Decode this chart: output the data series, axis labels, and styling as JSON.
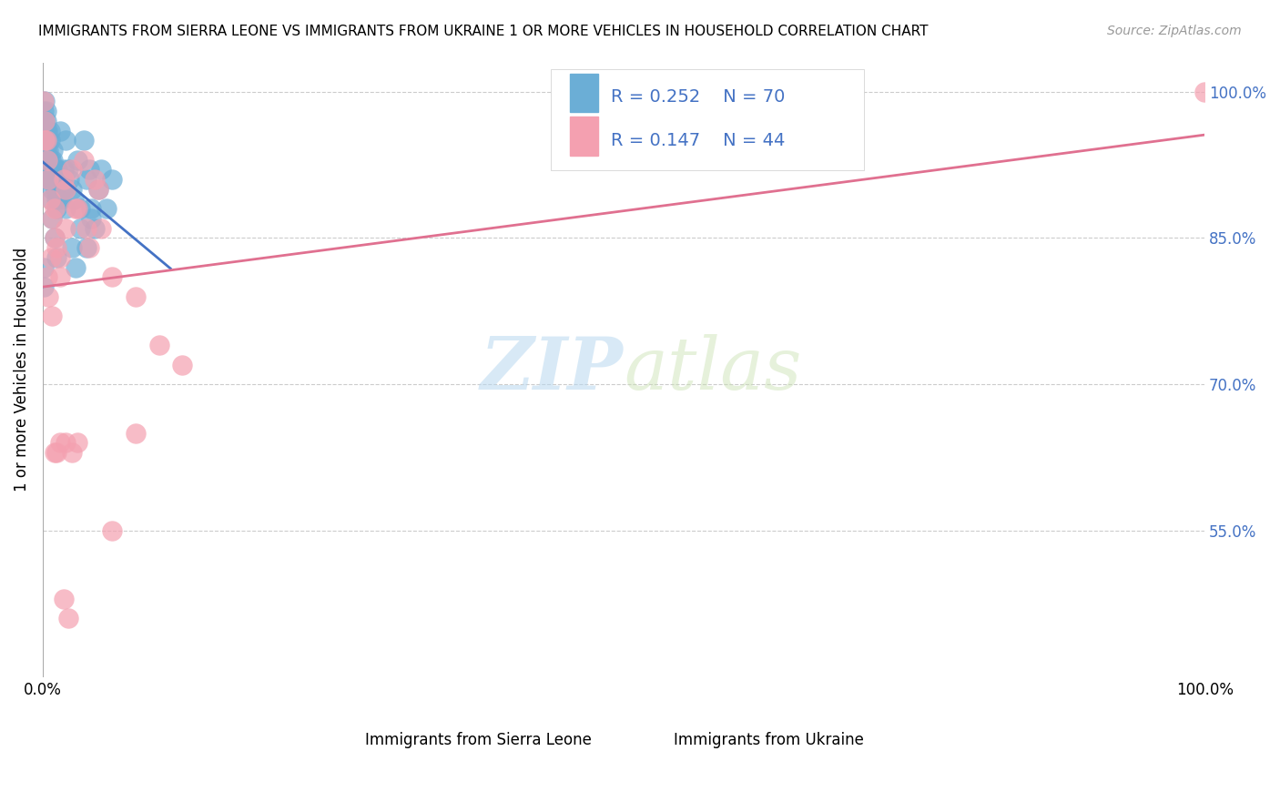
{
  "title": "IMMIGRANTS FROM SIERRA LEONE VS IMMIGRANTS FROM UKRAINE 1 OR MORE VEHICLES IN HOUSEHOLD CORRELATION CHART",
  "source": "Source: ZipAtlas.com",
  "ylabel": "1 or more Vehicles in Household",
  "xlim": [
    0.0,
    1.0
  ],
  "ylim": [
    0.4,
    1.03
  ],
  "yticks": [
    0.55,
    0.7,
    0.85,
    1.0
  ],
  "ytick_labels": [
    "55.0%",
    "70.0%",
    "85.0%",
    "100.0%"
  ],
  "xtick_labels": [
    "0.0%",
    "",
    "",
    "",
    "",
    "100.0%"
  ],
  "legend_r1": "R = 0.252",
  "legend_n1": "N = 70",
  "legend_r2": "R = 0.147",
  "legend_n2": "N = 44",
  "color_sl": "#6baed6",
  "color_uk": "#f4a0b0",
  "color_sl_line": "#4472c4",
  "color_uk_line": "#e07090",
  "legend_text_color": "#4472c4",
  "watermark_zip": "ZIP",
  "watermark_atlas": "atlas",
  "background_color": "#ffffff",
  "sierra_leone_x": [
    0.001,
    0.001,
    0.002,
    0.002,
    0.002,
    0.002,
    0.003,
    0.003,
    0.003,
    0.003,
    0.004,
    0.004,
    0.004,
    0.005,
    0.005,
    0.005,
    0.006,
    0.006,
    0.007,
    0.007,
    0.008,
    0.008,
    0.009,
    0.009,
    0.01,
    0.01,
    0.011,
    0.012,
    0.012,
    0.013,
    0.014,
    0.015,
    0.016,
    0.017,
    0.018,
    0.02,
    0.022,
    0.023,
    0.025,
    0.027,
    0.03,
    0.032,
    0.035,
    0.038,
    0.04,
    0.042,
    0.045,
    0.048,
    0.05,
    0.055,
    0.001,
    0.001,
    0.002,
    0.003,
    0.004,
    0.005,
    0.006,
    0.007,
    0.008,
    0.01,
    0.012,
    0.015,
    0.018,
    0.02,
    0.025,
    0.028,
    0.032,
    0.038,
    0.042,
    0.06
  ],
  "sierra_leone_y": [
    0.98,
    0.97,
    0.96,
    0.99,
    0.95,
    0.94,
    0.98,
    0.97,
    0.96,
    0.95,
    0.93,
    0.92,
    0.91,
    0.94,
    0.93,
    0.92,
    0.96,
    0.95,
    0.93,
    0.92,
    0.91,
    0.9,
    0.94,
    0.93,
    0.92,
    0.91,
    0.9,
    0.89,
    0.88,
    0.92,
    0.91,
    0.9,
    0.89,
    0.91,
    0.9,
    0.95,
    0.92,
    0.91,
    0.9,
    0.89,
    0.93,
    0.88,
    0.95,
    0.91,
    0.92,
    0.88,
    0.86,
    0.9,
    0.92,
    0.88,
    0.82,
    0.8,
    0.97,
    0.94,
    0.96,
    0.93,
    0.91,
    0.89,
    0.87,
    0.85,
    0.83,
    0.96,
    0.92,
    0.88,
    0.84,
    0.82,
    0.86,
    0.84,
    0.87,
    0.91
  ],
  "ukraine_x": [
    0.001,
    0.002,
    0.003,
    0.004,
    0.005,
    0.006,
    0.008,
    0.01,
    0.012,
    0.015,
    0.018,
    0.02,
    0.025,
    0.03,
    0.035,
    0.04,
    0.045,
    0.05,
    0.06,
    0.08,
    0.1,
    0.12,
    0.002,
    0.004,
    0.007,
    0.01,
    0.015,
    0.02,
    0.028,
    0.038,
    0.048,
    0.06,
    0.08,
    0.02,
    0.025,
    0.03,
    0.01,
    0.015,
    0.005,
    0.008,
    0.012,
    0.018,
    0.022,
    1.0
  ],
  "ukraine_y": [
    0.99,
    0.97,
    0.95,
    0.93,
    0.91,
    0.89,
    0.87,
    0.85,
    0.84,
    0.83,
    0.91,
    0.86,
    0.92,
    0.88,
    0.93,
    0.84,
    0.91,
    0.86,
    0.81,
    0.79,
    0.74,
    0.72,
    0.95,
    0.81,
    0.83,
    0.88,
    0.64,
    0.9,
    0.88,
    0.86,
    0.9,
    0.55,
    0.65,
    0.64,
    0.63,
    0.64,
    0.63,
    0.81,
    0.79,
    0.77,
    0.63,
    0.48,
    0.46,
    1.0
  ]
}
